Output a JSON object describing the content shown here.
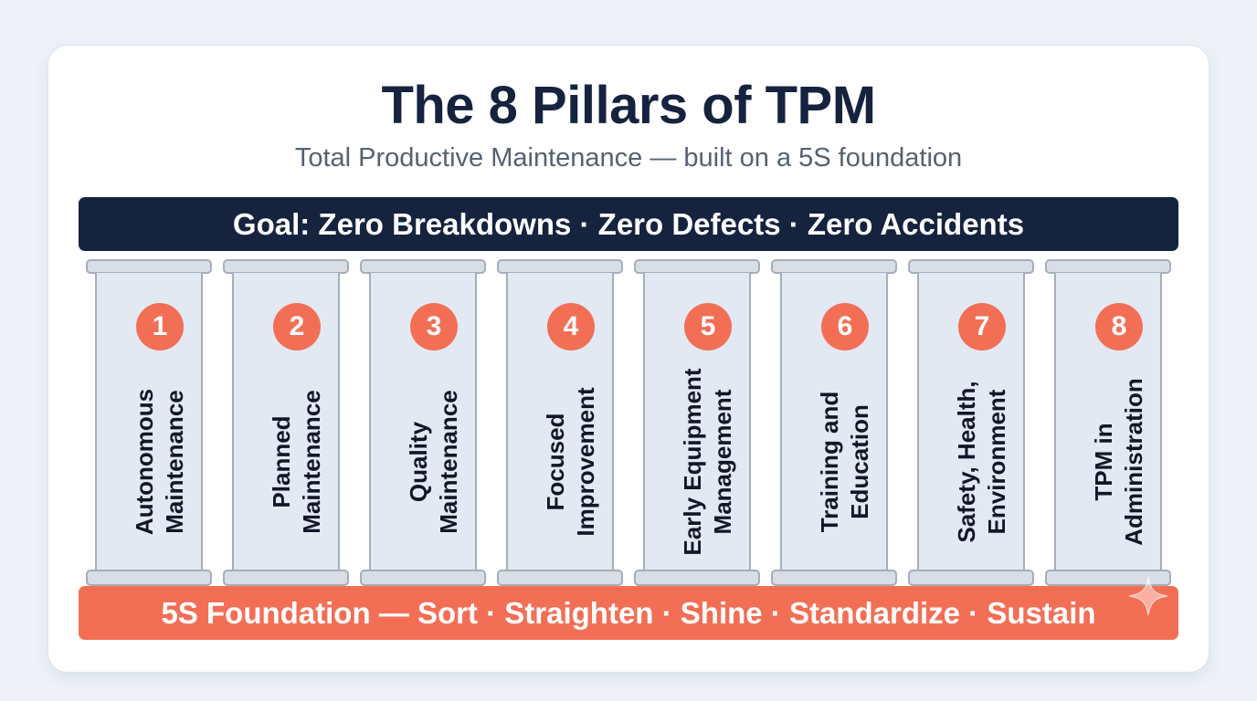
{
  "title": "The 8 Pillars of TPM",
  "subtitle": "Total Productive Maintenance — built on a 5S foundation",
  "goal": "Goal: Zero Breakdowns · Zero Defects · Zero Accidents",
  "foundation": "5S Foundation — Sort · Straighten · Shine · Standardize · Sustain",
  "pillars": [
    {
      "number": "1",
      "label": "Autonomous Maintenance"
    },
    {
      "number": "2",
      "label": "Planned Maintenance"
    },
    {
      "number": "3",
      "label": "Quality Maintenance"
    },
    {
      "number": "4",
      "label": "Focused Improvement"
    },
    {
      "number": "5",
      "label": "Early Equipment Management"
    },
    {
      "number": "6",
      "label": "Training and Education"
    },
    {
      "number": "7",
      "label": "Safety, Health, Environment"
    },
    {
      "number": "8",
      "label": "TPM in Administration"
    }
  ],
  "colors": {
    "navy": "#16233f",
    "coral": "#f26f56",
    "pillar_fill": "#e3e9f3",
    "pillar_outline": "#a6aebb",
    "background": "#eef2f8"
  },
  "icons": {
    "watermark": "sparkle-icon"
  }
}
